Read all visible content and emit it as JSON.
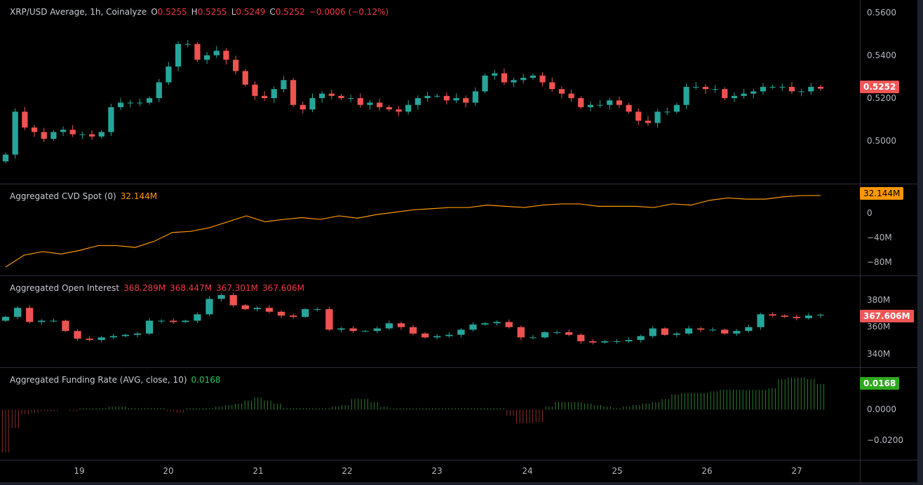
{
  "legend": {
    "price": {
      "title": "XRP/USD Average, 1h, Coinalyze",
      "o_label": "O",
      "o": "0.5255",
      "h_label": "H",
      "h": "0.5255",
      "l_label": "L",
      "l": "0.5249",
      "c_label": "C",
      "c": "0.5252",
      "change": "−0.0006 (−0.12%)"
    },
    "cvd": {
      "title": "Aggregated CVD Spot (0)",
      "value": "32.144M"
    },
    "oi": {
      "title": "Aggregated Open Interest",
      "values": [
        "368.289M",
        "368.447M",
        "367.301M",
        "367.606M"
      ]
    },
    "funding": {
      "title": "Aggregated Funding Rate (AVG, close, 10)",
      "value": "0.0168"
    }
  },
  "axes": {
    "price": [
      "0.5600",
      "0.5400",
      "0.5200",
      "0.5000"
    ],
    "cvd": [
      "0",
      "−40M",
      "−80M"
    ],
    "oi": [
      "380M",
      "360M",
      "340M"
    ],
    "funding": [
      "0.0000",
      "−0.0200"
    ],
    "time": [
      "19",
      "20",
      "21",
      "22",
      "23",
      "24",
      "25",
      "26",
      "27"
    ]
  },
  "tags": {
    "price": "0.5252",
    "cvd": "32.144M",
    "oi": "367.606M",
    "funding": "0.0168"
  },
  "colors": {
    "up": "#26a69a",
    "down": "#ef5350",
    "cvd": "#ff9800",
    "fund_up": "#2f7d32",
    "fund_down": "#8e2b2b",
    "tag_price": "#f05656",
    "tag_cvd": "#ff9800",
    "tag_oi": "#f05656",
    "tag_funding": "#2ea81f"
  },
  "chart_data": [
    {
      "type": "candlestick",
      "title": "XRP/USD Average, 1h, Coinalyze",
      "x_range_days": [
        18.17,
        27.27
      ],
      "ylim": [
        0.485,
        0.562
      ],
      "closes": [
        0.496,
        0.515,
        0.508,
        0.506,
        0.503,
        0.506,
        0.507,
        0.505,
        0.505,
        0.504,
        0.506,
        0.517,
        0.519,
        0.519,
        0.519,
        0.521,
        0.528,
        0.535,
        0.545,
        0.545,
        0.538,
        0.54,
        0.542,
        0.538,
        0.533,
        0.527,
        0.522,
        0.521,
        0.525,
        0.529,
        0.518,
        0.516,
        0.521,
        0.523,
        0.522,
        0.521,
        0.521,
        0.518,
        0.519,
        0.517,
        0.516,
        0.515,
        0.518,
        0.521,
        0.522,
        0.522,
        0.52,
        0.521,
        0.519,
        0.524,
        0.531,
        0.532,
        0.528,
        0.529,
        0.53,
        0.531,
        0.528,
        0.525,
        0.523,
        0.521,
        0.517,
        0.518,
        0.518,
        0.52,
        0.518,
        0.515,
        0.511,
        0.51,
        0.515,
        0.515,
        0.518,
        0.526,
        0.526,
        0.525,
        0.525,
        0.521,
        0.522,
        0.523,
        0.524,
        0.526,
        0.526,
        0.526,
        0.524,
        0.524,
        0.526,
        0.5252
      ]
    },
    {
      "type": "line",
      "title": "Aggregated CVD Spot (0)",
      "unit": "M",
      "x_range_days": [
        18.17,
        27.27
      ],
      "ylim": [
        -95,
        45
      ],
      "values": [
        -88,
        -68,
        -62,
        -66,
        -60,
        -52,
        -52,
        -55,
        -45,
        -30,
        -28,
        -22,
        -12,
        -2,
        -12,
        -8,
        -5,
        -8,
        -2,
        -6,
        0,
        4,
        8,
        10,
        12,
        12,
        16,
        14,
        12,
        16,
        18,
        18,
        14,
        14,
        14,
        12,
        18,
        16,
        24,
        28,
        26,
        26,
        30,
        32,
        32.144
      ]
    },
    {
      "type": "candlestick",
      "title": "Aggregated Open Interest",
      "unit": "M",
      "x_range_days": [
        18.17,
        27.27
      ],
      "ylim": [
        330,
        395
      ],
      "closes": [
        366,
        373,
        362,
        363,
        363,
        355,
        349,
        348,
        350,
        351,
        352,
        353,
        363,
        363,
        362,
        363,
        368,
        380,
        383,
        375,
        372,
        373,
        370,
        367,
        366,
        372,
        372,
        356,
        357,
        355,
        355,
        357,
        361,
        358,
        353,
        350,
        351,
        352,
        356,
        360,
        361,
        362,
        358,
        350,
        350,
        354,
        354,
        352,
        347,
        346,
        347,
        347,
        348,
        351,
        357,
        352,
        353,
        357,
        356,
        356,
        353,
        355,
        358,
        368,
        367,
        366,
        365,
        367,
        367.606
      ]
    },
    {
      "type": "bar",
      "title": "Aggregated Funding Rate (AVG, close, 10)",
      "x_range_days": [
        18.17,
        27.27
      ],
      "ylim": [
        -0.03,
        0.025
      ],
      "values": [
        -0.028,
        -0.012,
        -0.003,
        -0.002,
        -0.001,
        -0.001,
        0.0,
        -0.001,
        0.001,
        0.001,
        0.001,
        0.002,
        0.002,
        0.001,
        0.001,
        0.001,
        0.001,
        -0.001,
        -0.002,
        0.001,
        0.001,
        0.001,
        0.002,
        0.003,
        0.004,
        0.006,
        0.008,
        0.006,
        0.004,
        0.001,
        0.001,
        0.001,
        0.001,
        0.001,
        0.002,
        0.003,
        0.007,
        0.007,
        0.005,
        0.002,
        0.001,
        0.001,
        0.001,
        0.001,
        0.001,
        0.001,
        0.001,
        0.001,
        0.001,
        0.001,
        0.001,
        0.001,
        -0.004,
        -0.009,
        -0.009,
        -0.008,
        0.002,
        0.005,
        0.005,
        0.005,
        0.004,
        0.003,
        0.002,
        0.001,
        0.002,
        0.003,
        0.004,
        0.005,
        0.007,
        0.01,
        0.011,
        0.011,
        0.011,
        0.012,
        0.013,
        0.013,
        0.013,
        0.013,
        0.013,
        0.014,
        0.02,
        0.021,
        0.021,
        0.02,
        0.0168
      ]
    }
  ]
}
